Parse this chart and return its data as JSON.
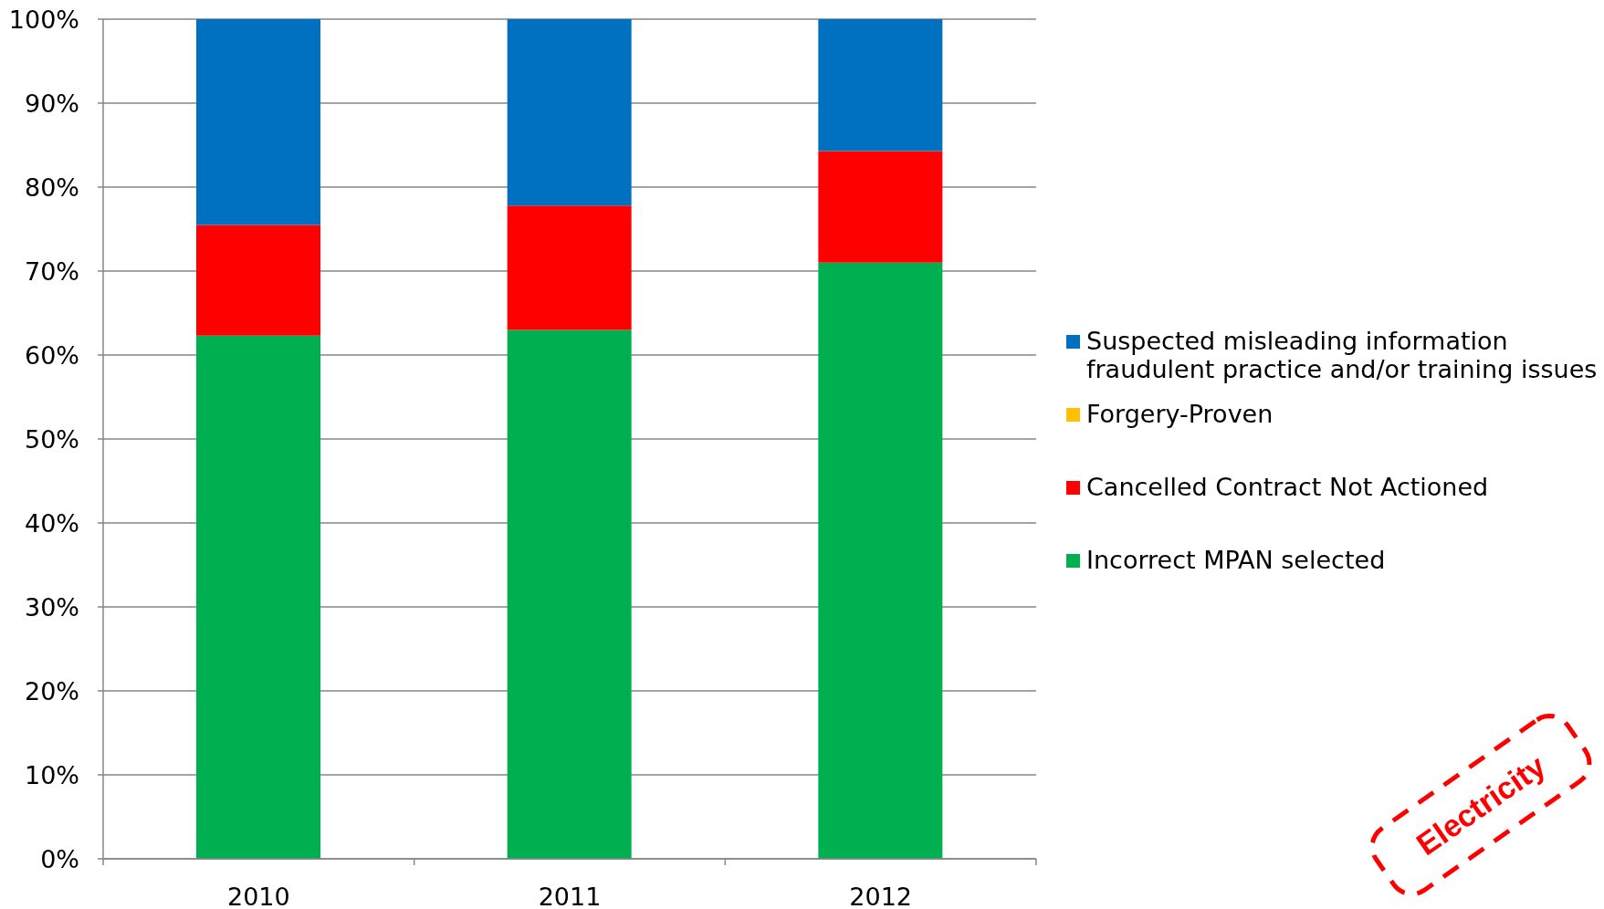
{
  "chart_data": {
    "type": "bar",
    "stacked": true,
    "categories": [
      "2010",
      "2011",
      "2012"
    ],
    "series": [
      {
        "name": "Incorrect MPAN selected",
        "color": "#00b050",
        "values": [
          62.3,
          63.0,
          71.0
        ]
      },
      {
        "name": "Cancelled Contract Not Actioned",
        "color": "#ff0000",
        "values": [
          13.2,
          14.8,
          13.3
        ]
      },
      {
        "name": "Forgery-Proven",
        "color": "#ffc000",
        "values": [
          0,
          0,
          0
        ]
      },
      {
        "name": "Suspected misleading information fraudulent practice and/or training issues",
        "color": "#0070c0",
        "values": [
          24.5,
          22.2,
          15.7
        ]
      }
    ],
    "ylim": [
      0,
      100
    ],
    "yticks": [
      {
        "value": 0,
        "label": "0%"
      },
      {
        "value": 10,
        "label": "10%"
      },
      {
        "value": 20,
        "label": "20%"
      },
      {
        "value": 30,
        "label": "30%"
      },
      {
        "value": 40,
        "label": "40%"
      },
      {
        "value": 50,
        "label": "50%"
      },
      {
        "value": 60,
        "label": "60%"
      },
      {
        "value": 70,
        "label": "70%"
      },
      {
        "value": 80,
        "label": "80%"
      },
      {
        "value": 90,
        "label": "90%"
      },
      {
        "value": 100,
        "label": "100%"
      }
    ],
    "grid": "y",
    "legend": "right",
    "annotations": [
      "Electricity"
    ]
  }
}
